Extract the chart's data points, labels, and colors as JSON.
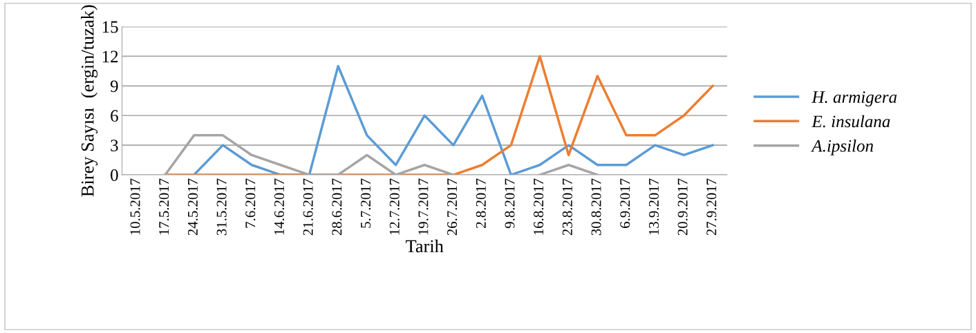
{
  "chart_data": {
    "type": "line",
    "xlabel": "Tarih",
    "ylabel": "Birey Sayısı  (ergin/tuzak)",
    "categories": [
      "10.5.2017",
      "17.5.2017",
      "24.5.2017",
      "31.5.2017",
      "7.6.2017",
      "14.6.2017",
      "21.6.2017",
      "28.6.2017",
      "5.7.2017",
      "12.7.2017",
      "19.7.2017",
      "26.7.2017",
      "2.8.2017",
      "9.8.2017",
      "16.8.2017",
      "23.8.2017",
      "30.8.2017",
      "6.9.2017",
      "13.9.2017",
      "20.9.2017",
      "27.9.2017"
    ],
    "series": [
      {
        "name": "H. armigera",
        "color": "#5b9bd5",
        "values": [
          null,
          null,
          0,
          3,
          1,
          0,
          0,
          11,
          4,
          1,
          6,
          3,
          8,
          0,
          1,
          3,
          1,
          1,
          3,
          2,
          3
        ]
      },
      {
        "name": "E. insulana",
        "color": "#ed7d31",
        "values": [
          null,
          0,
          0,
          0,
          0,
          0,
          0,
          0,
          0,
          0,
          0,
          0,
          1,
          3,
          12,
          2,
          10,
          4,
          4,
          6,
          9
        ]
      },
      {
        "name": "A.ipsilon",
        "color": "#a5a5a5",
        "values": [
          null,
          0,
          4,
          4,
          2,
          1,
          0,
          0,
          2,
          0,
          1,
          0,
          null,
          null,
          0,
          1,
          0,
          null,
          null,
          null,
          null
        ]
      }
    ],
    "ylim": [
      0,
      15
    ],
    "yticks": [
      0,
      3,
      6,
      9,
      12,
      15
    ],
    "grid": "y",
    "legend": "right",
    "marker": "none",
    "line_style": "solid"
  }
}
